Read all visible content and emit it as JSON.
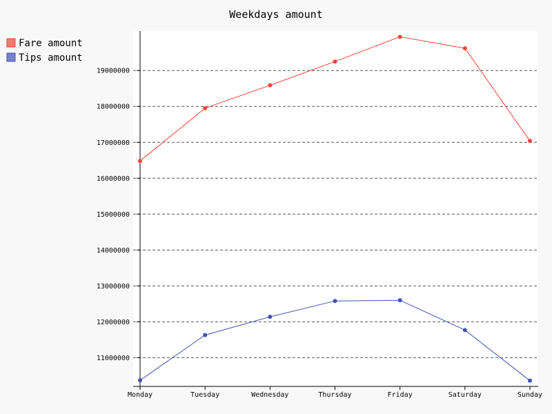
{
  "chart_data": {
    "type": "line",
    "title": "Weekdays amount",
    "categories": [
      "Monday",
      "Tuesday",
      "Wednesday",
      "Thursday",
      "Friday",
      "Saturday",
      "Sunday"
    ],
    "series": [
      {
        "name": "Fare amount",
        "color": "#f44336",
        "values": [
          16480000,
          17950000,
          18590000,
          19250000,
          19940000,
          19620000,
          17040000
        ]
      },
      {
        "name": "Tips amount",
        "color": "#3f51b5",
        "values": [
          10370000,
          11630000,
          12140000,
          12580000,
          12600000,
          11770000,
          10360000
        ]
      }
    ],
    "y_ticks": [
      "11000000",
      "12000000",
      "13000000",
      "14000000",
      "15000000",
      "16000000",
      "17000000",
      "18000000",
      "19000000"
    ],
    "ylim": [
      10200000,
      20100000
    ],
    "legend": "top-left",
    "grid": "horizontal-dashed"
  }
}
